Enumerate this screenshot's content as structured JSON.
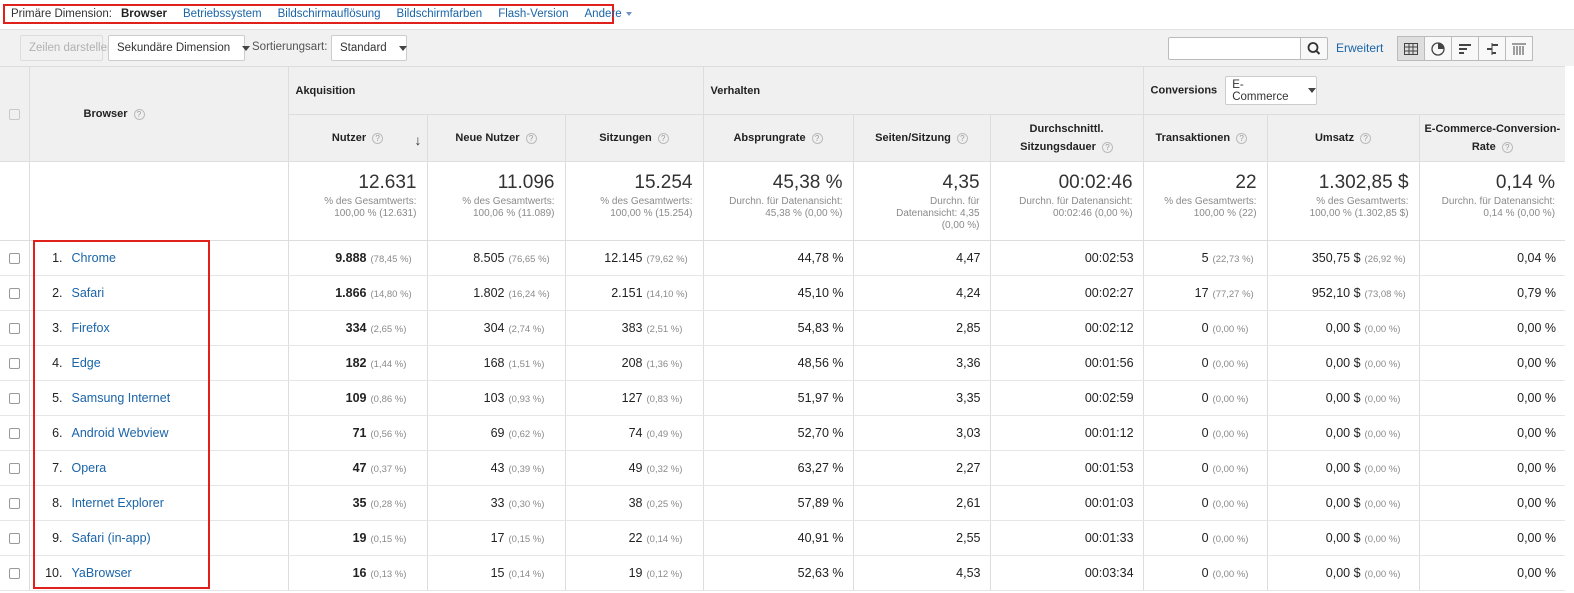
{
  "dimension_bar": {
    "label": "Primäre Dimension:",
    "current": "Browser",
    "options": [
      "Betriebssystem",
      "Bildschirmauflösung",
      "Bildschirmfarben",
      "Flash-Version",
      "Andere"
    ]
  },
  "toolbar": {
    "plot_rows": "Zeilen darstellen",
    "secondary_dimension": "Sekundäre Dimension",
    "sort_label": "Sortierungsart:",
    "sort_value": "Standard",
    "search_value": "",
    "advanced": "Erweitert"
  },
  "groups": {
    "acquisition": "Akquisition",
    "behavior": "Verhalten",
    "conversions": "Conversions",
    "conversions_select": "E-Commerce"
  },
  "columns": {
    "browser": "Browser",
    "users": "Nutzer",
    "new_users": "Neue Nutzer",
    "sessions": "Sitzungen",
    "bounce": "Absprungrate",
    "pages": "Seiten/Sitzung",
    "duration_l1": "Durchschnittl.",
    "duration_l2": "Sitzungsdauer",
    "transactions": "Transaktionen",
    "revenue": "Umsatz",
    "conv_l1": "E-Commerce-Conversion-",
    "conv_l2": "Rate"
  },
  "totals": {
    "users": {
      "value": "12.631",
      "l1": "% des Gesamtwerts:",
      "l2": "100,00 % (12.631)"
    },
    "new_users": {
      "value": "11.096",
      "l1": "% des Gesamtwerts:",
      "l2": "100,06 % (11.089)"
    },
    "sessions": {
      "value": "15.254",
      "l1": "% des Gesamtwerts:",
      "l2": "100,00 % (15.254)"
    },
    "bounce": {
      "value": "45,38 %",
      "l1": "Durchn. für Datenansicht:",
      "l2": "45,38 % (0,00 %)"
    },
    "pages": {
      "value": "4,35",
      "l1": "Durchn. für",
      "l2": "Datenansicht: 4,35",
      "l3": "(0,00 %)"
    },
    "duration": {
      "value": "00:02:46",
      "l1": "Durchn. für Datenansicht:",
      "l2": "00:02:46 (0,00 %)"
    },
    "transactions": {
      "value": "22",
      "l1": "% des Gesamtwerts:",
      "l2": "100,00 % (22)"
    },
    "revenue": {
      "value": "1.302,85 $",
      "l1": "% des Gesamtwerts:",
      "l2": "100,00 % (1.302,85 $)"
    },
    "conv_rate": {
      "value": "0,14 %",
      "l1": "Durchn. für Datenansicht:",
      "l2": "0,14 % (0,00 %)"
    }
  },
  "rows": [
    {
      "rank": "1.",
      "browser": "Chrome",
      "users": "9.888",
      "users_pct": "(78,45 %)",
      "new_users": "8.505",
      "new_users_pct": "(76,65 %)",
      "sessions": "12.145",
      "sessions_pct": "(79,62 %)",
      "bounce": "44,78 %",
      "pages": "4,47",
      "duration": "00:02:53",
      "transactions": "5",
      "transactions_pct": "(22,73 %)",
      "revenue": "350,75 $",
      "revenue_pct": "(26,92 %)",
      "conv_rate": "0,04 %"
    },
    {
      "rank": "2.",
      "browser": "Safari",
      "users": "1.866",
      "users_pct": "(14,80 %)",
      "new_users": "1.802",
      "new_users_pct": "(16,24 %)",
      "sessions": "2.151",
      "sessions_pct": "(14,10 %)",
      "bounce": "45,10 %",
      "pages": "4,24",
      "duration": "00:02:27",
      "transactions": "17",
      "transactions_pct": "(77,27 %)",
      "revenue": "952,10 $",
      "revenue_pct": "(73,08 %)",
      "conv_rate": "0,79 %"
    },
    {
      "rank": "3.",
      "browser": "Firefox",
      "users": "334",
      "users_pct": "(2,65 %)",
      "new_users": "304",
      "new_users_pct": "(2,74 %)",
      "sessions": "383",
      "sessions_pct": "(2,51 %)",
      "bounce": "54,83 %",
      "pages": "2,85",
      "duration": "00:02:12",
      "transactions": "0",
      "transactions_pct": "(0,00 %)",
      "revenue": "0,00 $",
      "revenue_pct": "(0,00 %)",
      "conv_rate": "0,00 %"
    },
    {
      "rank": "4.",
      "browser": "Edge",
      "users": "182",
      "users_pct": "(1,44 %)",
      "new_users": "168",
      "new_users_pct": "(1,51 %)",
      "sessions": "208",
      "sessions_pct": "(1,36 %)",
      "bounce": "48,56 %",
      "pages": "3,36",
      "duration": "00:01:56",
      "transactions": "0",
      "transactions_pct": "(0,00 %)",
      "revenue": "0,00 $",
      "revenue_pct": "(0,00 %)",
      "conv_rate": "0,00 %"
    },
    {
      "rank": "5.",
      "browser": "Samsung Internet",
      "users": "109",
      "users_pct": "(0,86 %)",
      "new_users": "103",
      "new_users_pct": "(0,93 %)",
      "sessions": "127",
      "sessions_pct": "(0,83 %)",
      "bounce": "51,97 %",
      "pages": "3,35",
      "duration": "00:02:59",
      "transactions": "0",
      "transactions_pct": "(0,00 %)",
      "revenue": "0,00 $",
      "revenue_pct": "(0,00 %)",
      "conv_rate": "0,00 %"
    },
    {
      "rank": "6.",
      "browser": "Android Webview",
      "users": "71",
      "users_pct": "(0,56 %)",
      "new_users": "69",
      "new_users_pct": "(0,62 %)",
      "sessions": "74",
      "sessions_pct": "(0,49 %)",
      "bounce": "52,70 %",
      "pages": "3,03",
      "duration": "00:01:12",
      "transactions": "0",
      "transactions_pct": "(0,00 %)",
      "revenue": "0,00 $",
      "revenue_pct": "(0,00 %)",
      "conv_rate": "0,00 %"
    },
    {
      "rank": "7.",
      "browser": "Opera",
      "users": "47",
      "users_pct": "(0,37 %)",
      "new_users": "43",
      "new_users_pct": "(0,39 %)",
      "sessions": "49",
      "sessions_pct": "(0,32 %)",
      "bounce": "63,27 %",
      "pages": "2,27",
      "duration": "00:01:53",
      "transactions": "0",
      "transactions_pct": "(0,00 %)",
      "revenue": "0,00 $",
      "revenue_pct": "(0,00 %)",
      "conv_rate": "0,00 %"
    },
    {
      "rank": "8.",
      "browser": "Internet Explorer",
      "users": "35",
      "users_pct": "(0,28 %)",
      "new_users": "33",
      "new_users_pct": "(0,30 %)",
      "sessions": "38",
      "sessions_pct": "(0,25 %)",
      "bounce": "57,89 %",
      "pages": "2,61",
      "duration": "00:01:03",
      "transactions": "0",
      "transactions_pct": "(0,00 %)",
      "revenue": "0,00 $",
      "revenue_pct": "(0,00 %)",
      "conv_rate": "0,00 %"
    },
    {
      "rank": "9.",
      "browser": "Safari (in-app)",
      "users": "19",
      "users_pct": "(0,15 %)",
      "new_users": "17",
      "new_users_pct": "(0,15 %)",
      "sessions": "22",
      "sessions_pct": "(0,14 %)",
      "bounce": "40,91 %",
      "pages": "2,55",
      "duration": "00:01:33",
      "transactions": "0",
      "transactions_pct": "(0,00 %)",
      "revenue": "0,00 $",
      "revenue_pct": "(0,00 %)",
      "conv_rate": "0,00 %"
    },
    {
      "rank": "10.",
      "browser": "YaBrowser",
      "users": "16",
      "users_pct": "(0,13 %)",
      "new_users": "15",
      "new_users_pct": "(0,14 %)",
      "sessions": "19",
      "sessions_pct": "(0,12 %)",
      "bounce": "52,63 %",
      "pages": "4,53",
      "duration": "00:03:34",
      "transactions": "0",
      "transactions_pct": "(0,00 %)",
      "revenue": "0,00 $",
      "revenue_pct": "(0,00 %)",
      "conv_rate": "0,00 %"
    }
  ],
  "icons": [
    "search-icon",
    "table-view-icon",
    "pie-view-icon",
    "performance-view-icon",
    "comparison-view-icon",
    "pivot-view-icon",
    "help-icon",
    "sort-desc-icon"
  ],
  "colors": {
    "link": "#1a64a8",
    "highlight": "#e0201b",
    "header_bg": "#f0f0f0"
  }
}
